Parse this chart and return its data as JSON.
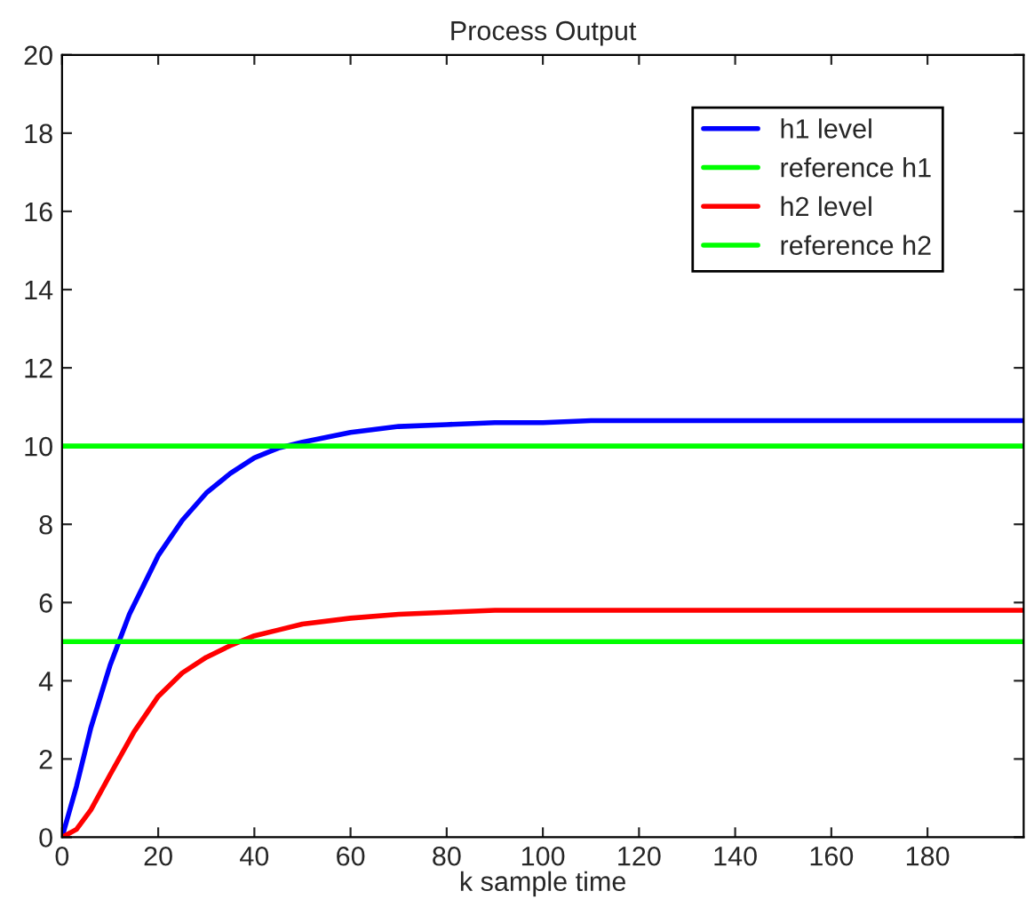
{
  "chart_data": {
    "type": "line",
    "title": "Process Output",
    "xlabel": "k sample time",
    "xlim": [
      0,
      200
    ],
    "ylim": [
      0,
      20
    ],
    "xticks": [
      0,
      20,
      40,
      60,
      80,
      100,
      120,
      140,
      160,
      180
    ],
    "yticks": [
      0,
      2,
      4,
      6,
      8,
      10,
      12,
      14,
      16,
      18,
      20
    ],
    "grid": false,
    "legend": "top right",
    "marker": "none",
    "line_style": "solid",
    "series": [
      {
        "name": "h1 level",
        "color": "#0000ff",
        "x": [
          0,
          3,
          6,
          10,
          14,
          20,
          25,
          30,
          35,
          40,
          45,
          50,
          60,
          70,
          80,
          90,
          100,
          110,
          140,
          170,
          200
        ],
        "values": [
          0,
          1.3,
          2.8,
          4.4,
          5.7,
          7.2,
          8.1,
          8.8,
          9.3,
          9.7,
          9.95,
          10.1,
          10.35,
          10.5,
          10.55,
          10.6,
          10.6,
          10.65,
          10.65,
          10.65,
          10.65
        ]
      },
      {
        "name": "reference h1",
        "color": "#00ff00",
        "x": [
          0,
          200
        ],
        "values": [
          10,
          10
        ]
      },
      {
        "name": "h2 level",
        "color": "#ff0000",
        "x": [
          0,
          3,
          6,
          10,
          15,
          20,
          25,
          30,
          35,
          40,
          45,
          50,
          60,
          70,
          80,
          90,
          100,
          140,
          200
        ],
        "values": [
          0,
          0.2,
          0.7,
          1.6,
          2.7,
          3.6,
          4.2,
          4.6,
          4.9,
          5.15,
          5.3,
          5.45,
          5.6,
          5.7,
          5.75,
          5.8,
          5.8,
          5.8,
          5.8
        ]
      },
      {
        "name": "reference h2",
        "color": "#00ff00",
        "x": [
          0,
          200
        ],
        "values": [
          5,
          5
        ]
      }
    ]
  }
}
